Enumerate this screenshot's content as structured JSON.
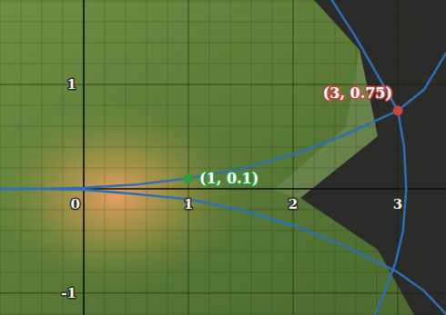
{
  "chart_data": {
    "type": "line",
    "xlim": [
      -0.8,
      3.46
    ],
    "ylim": [
      -1.21,
      1.81
    ],
    "xticks": [
      0,
      1,
      2,
      3
    ],
    "yticks": [
      -1,
      1
    ],
    "grid": true,
    "series": [
      {
        "type": "line",
        "color": "#2d70b3",
        "x": [
          -0.8,
          -0.4,
          0,
          0.5,
          1,
          1.5,
          2,
          2.5,
          3,
          3.25,
          3.46
        ],
        "values": [
          0.0,
          0.0,
          0.01,
          0.04,
          0.1,
          0.19,
          0.33,
          0.52,
          0.75,
          0.95,
          1.3
        ]
      },
      {
        "type": "line",
        "color": "#2d70b3",
        "x": [
          -0.8,
          -0.4,
          0,
          0.5,
          1,
          1.5,
          2,
          2.5,
          3,
          3.25,
          3.46
        ],
        "values": [
          0.0,
          0.0,
          -0.01,
          -0.05,
          -0.1,
          -0.2,
          -0.35,
          -0.55,
          -0.8,
          -0.98,
          -1.2
        ]
      },
      {
        "type": "line",
        "color": "#2d70b3",
        "x": [
          2.37,
          2.6,
          2.8,
          3.0,
          3.06,
          3.08,
          3.05,
          2.98,
          2.87,
          2.78
        ],
        "values": [
          1.81,
          1.45,
          1.1,
          0.75,
          0.4,
          0.0,
          -0.4,
          -0.7,
          -1.0,
          -1.21
        ]
      },
      {
        "type": "scatter",
        "color": "#2e9b3c",
        "marker": "circle",
        "x": [
          1
        ],
        "values": [
          0.1
        ],
        "data_labels": true,
        "value_labels": [
          "(1, 0.1)"
        ]
      },
      {
        "type": "scatter",
        "color": "#c74440",
        "marker": "circle",
        "x": [
          3
        ],
        "values": [
          0.75
        ],
        "data_labels": true,
        "value_labels": [
          "(3, 0.75)"
        ]
      }
    ]
  }
}
